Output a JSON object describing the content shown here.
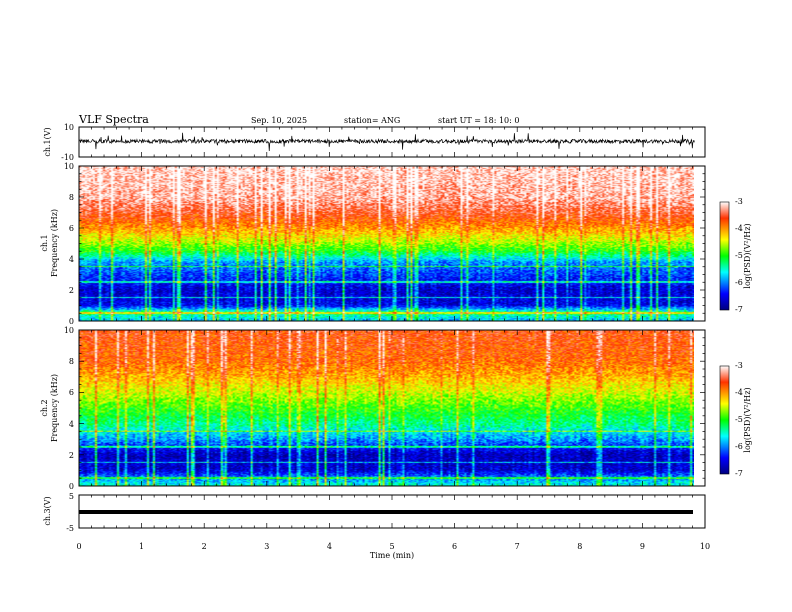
{
  "header": {
    "title": "VLF Spectra",
    "date": "Sep. 10, 2025",
    "station": "station= ANG",
    "start_ut": "start UT =  18: 10: 0"
  },
  "chart_data": [
    {
      "type": "line",
      "name": "ch1-voltage",
      "ylabel": "ch.1(V)",
      "ylim": [
        -10,
        10
      ],
      "yticks": [
        "10",
        "-10"
      ],
      "x_range_min": [
        0,
        9.83
      ],
      "description_values": {
        "baseline": 0.5,
        "noise_amplitude": 2.5
      }
    },
    {
      "type": "heatmap",
      "name": "ch1-spectrogram",
      "ylabel_lines": [
        "ch.1",
        "Frequency  (kHz)"
      ],
      "ylim": [
        0,
        10
      ],
      "yticks": [
        "0",
        "2",
        "4",
        "6",
        "8",
        "10"
      ],
      "x_range_min": [
        0,
        9.83
      ],
      "colorbar": {
        "label": "log(PSD)(V²/Hz)",
        "range": [
          -7,
          -3
        ],
        "ticks": [
          "-3",
          "-4",
          "-5",
          "-6",
          "-7"
        ]
      },
      "profile_khz_to_logpsd": [
        [
          0,
          -5.8
        ],
        [
          0.5,
          -5.2
        ],
        [
          1,
          -6.5
        ],
        [
          2,
          -6.6
        ],
        [
          3,
          -6.2
        ],
        [
          3.8,
          -5.9
        ],
        [
          4.5,
          -5.0
        ],
        [
          5.2,
          -4.5
        ],
        [
          6,
          -4.0
        ],
        [
          7,
          -3.5
        ],
        [
          8,
          -3.2
        ],
        [
          10,
          -3.1
        ]
      ]
    },
    {
      "type": "heatmap",
      "name": "ch2-spectrogram",
      "ylabel_lines": [
        "ch.2",
        "Frequency  (kHz)"
      ],
      "ylim": [
        0,
        10
      ],
      "yticks": [
        "0",
        "2",
        "4",
        "6",
        "8",
        "10"
      ],
      "x_range_min": [
        0,
        9.83
      ],
      "colorbar": {
        "label": "log(PSD)(V²/Hz)",
        "range": [
          -7,
          -3
        ],
        "ticks": [
          "-3",
          "-4",
          "-5",
          "-6",
          "-7"
        ]
      },
      "profile_khz_to_logpsd": [
        [
          0,
          -5.5
        ],
        [
          0.5,
          -6.0
        ],
        [
          1,
          -6.6
        ],
        [
          2,
          -6.7
        ],
        [
          3,
          -5.9
        ],
        [
          4,
          -5.3
        ],
        [
          5,
          -4.9
        ],
        [
          6,
          -4.5
        ],
        [
          7,
          -4.1
        ],
        [
          8,
          -3.8
        ],
        [
          10,
          -3.6
        ]
      ]
    },
    {
      "type": "line",
      "name": "ch3-voltage",
      "ylabel": "ch.3(V)",
      "ylim": [
        -5,
        5
      ],
      "yticks": [
        "5",
        "-5"
      ],
      "x_range_min": [
        0,
        9.83
      ],
      "description_values": {
        "constant": 0
      }
    }
  ],
  "xaxis": {
    "label": "Time  (min)",
    "range": [
      0,
      10
    ],
    "ticks": [
      "0",
      "1",
      "2",
      "3",
      "4",
      "5",
      "6",
      "7",
      "8",
      "9",
      "10"
    ]
  }
}
